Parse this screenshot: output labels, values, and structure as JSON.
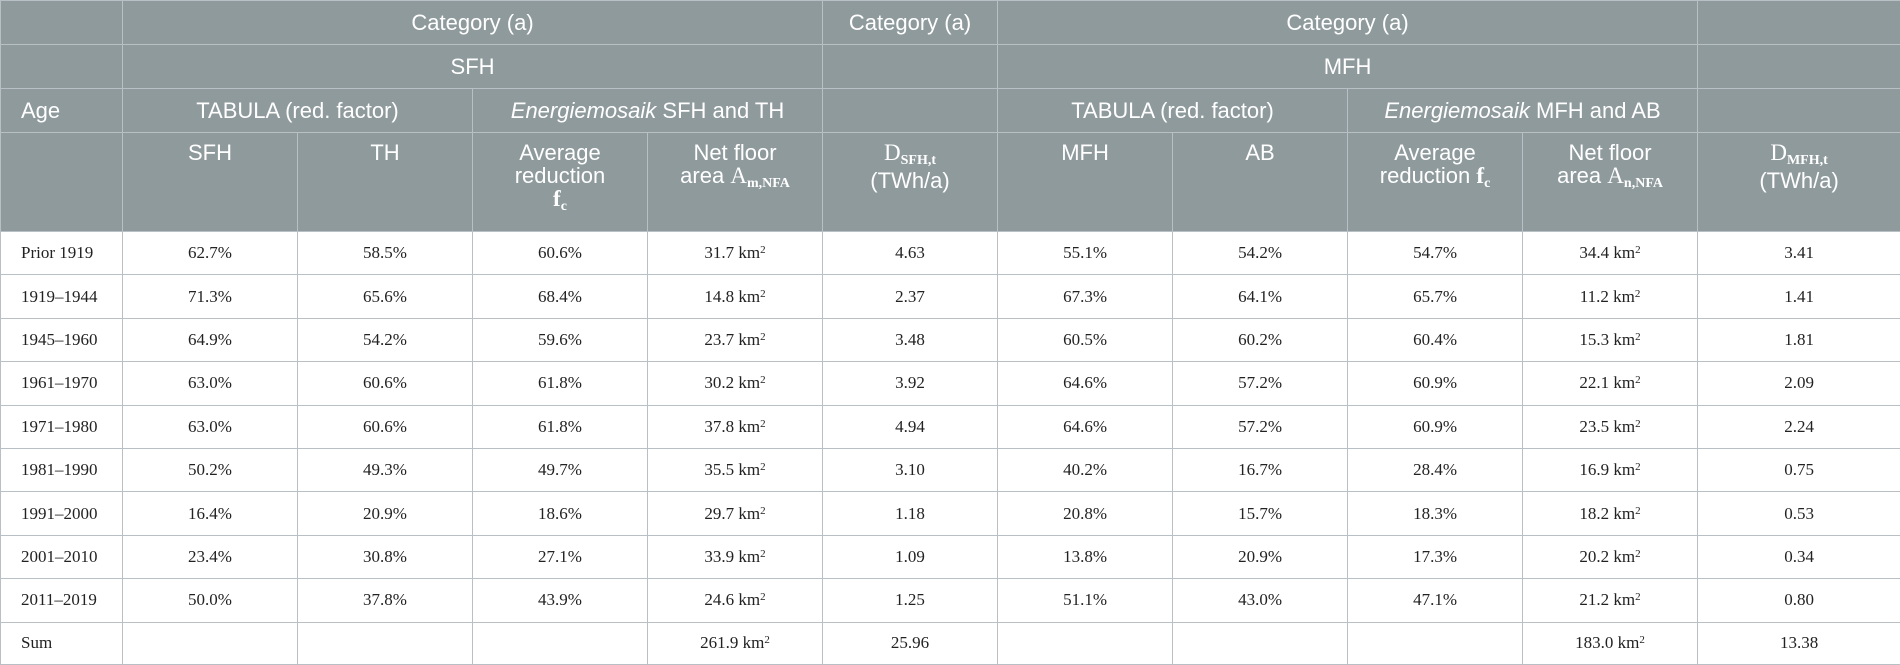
{
  "header": {
    "row1": [
      "Category (a)",
      "Category (a)",
      "Category (a)"
    ],
    "row2": [
      "SFH",
      "MFH"
    ],
    "row3": {
      "age": "Age",
      "sfh_tabula": "TABULA (red. factor)",
      "sfh_energiemosaik_em": "Energiemosaik",
      "sfh_energiemosaik_rest": " SFH and TH",
      "mfh_tabula": "TABULA (red. factor)",
      "mfh_energiemosaik_em": "Energiemosaik",
      "mfh_energiemosaik_rest": " MFH and AB"
    },
    "row4": {
      "sfh": "SFH",
      "th": "TH",
      "avg_red_sfh_1": "Average",
      "avg_red_sfh_2": "reduction",
      "f_main": "f",
      "f_sub": "c",
      "nfa_sfh_1": "Net floor",
      "nfa_sfh_2": "area",
      "a_main": "A",
      "a_sfh_sub": "m,NFA",
      "d_main": "D",
      "d_sfh_sub": "SFH,t",
      "unit": "(TWh/a)",
      "mfh": "MFH",
      "ab": "AB",
      "avg_red_mfh_1": "Average",
      "avg_red_mfh_2": "reduction",
      "nfa_mfh_1": "Net floor",
      "nfa_mfh_2": "area",
      "a_mfh_sub": "n,NFA",
      "d_mfh_sub": "MFH,t"
    }
  },
  "unit_area": "km",
  "unit_sup": "2",
  "rows": [
    {
      "age": "Prior 1919",
      "sfh": "62.7%",
      "th": "58.5%",
      "avg_sfh": "60.6%",
      "nfa_sfh": "31.7",
      "d_sfh": "4.63",
      "mfh": "55.1%",
      "ab": "54.2%",
      "avg_mfh": "54.7%",
      "nfa_mfh": "34.4",
      "d_mfh": "3.41"
    },
    {
      "age": "1919–1944",
      "sfh": "71.3%",
      "th": "65.6%",
      "avg_sfh": "68.4%",
      "nfa_sfh": "14.8",
      "d_sfh": "2.37",
      "mfh": "67.3%",
      "ab": "64.1%",
      "avg_mfh": "65.7%",
      "nfa_mfh": "11.2",
      "d_mfh": "1.41"
    },
    {
      "age": "1945–1960",
      "sfh": "64.9%",
      "th": "54.2%",
      "avg_sfh": "59.6%",
      "nfa_sfh": "23.7",
      "d_sfh": "3.48",
      "mfh": "60.5%",
      "ab": "60.2%",
      "avg_mfh": "60.4%",
      "nfa_mfh": "15.3",
      "d_mfh": "1.81"
    },
    {
      "age": "1961–1970",
      "sfh": "63.0%",
      "th": "60.6%",
      "avg_sfh": "61.8%",
      "nfa_sfh": "30.2",
      "d_sfh": "3.92",
      "mfh": "64.6%",
      "ab": "57.2%",
      "avg_mfh": "60.9%",
      "nfa_mfh": "22.1",
      "d_mfh": "2.09"
    },
    {
      "age": "1971–1980",
      "sfh": "63.0%",
      "th": "60.6%",
      "avg_sfh": "61.8%",
      "nfa_sfh": "37.8",
      "d_sfh": "4.94",
      "mfh": "64.6%",
      "ab": "57.2%",
      "avg_mfh": "60.9%",
      "nfa_mfh": "23.5",
      "d_mfh": "2.24"
    },
    {
      "age": "1981–1990",
      "sfh": "50.2%",
      "th": "49.3%",
      "avg_sfh": "49.7%",
      "nfa_sfh": "35.5",
      "d_sfh": "3.10",
      "mfh": "40.2%",
      "ab": "16.7%",
      "avg_mfh": "28.4%",
      "nfa_mfh": "16.9",
      "d_mfh": "0.75"
    },
    {
      "age": "1991–2000",
      "sfh": "16.4%",
      "th": "20.9%",
      "avg_sfh": "18.6%",
      "nfa_sfh": "29.7",
      "d_sfh": "1.18",
      "mfh": "20.8%",
      "ab": "15.7%",
      "avg_mfh": "18.3%",
      "nfa_mfh": "18.2",
      "d_mfh": "0.53"
    },
    {
      "age": "2001–2010",
      "sfh": "23.4%",
      "th": "30.8%",
      "avg_sfh": "27.1%",
      "nfa_sfh": "33.9",
      "d_sfh": "1.09",
      "mfh": "13.8%",
      "ab": "20.9%",
      "avg_mfh": "17.3%",
      "nfa_mfh": "20.2",
      "d_mfh": "0.34"
    },
    {
      "age": "2011–2019",
      "sfh": "50.0%",
      "th": "37.8%",
      "avg_sfh": "43.9%",
      "nfa_sfh": "24.6",
      "d_sfh": "1.25",
      "mfh": "51.1%",
      "ab": "43.0%",
      "avg_mfh": "47.1%",
      "nfa_mfh": "21.2",
      "d_mfh": "0.80"
    }
  ],
  "sum": {
    "label": "Sum",
    "nfa_sfh": "261.9",
    "d_sfh": "25.96",
    "nfa_mfh": "183.0",
    "d_mfh": "13.38"
  }
}
